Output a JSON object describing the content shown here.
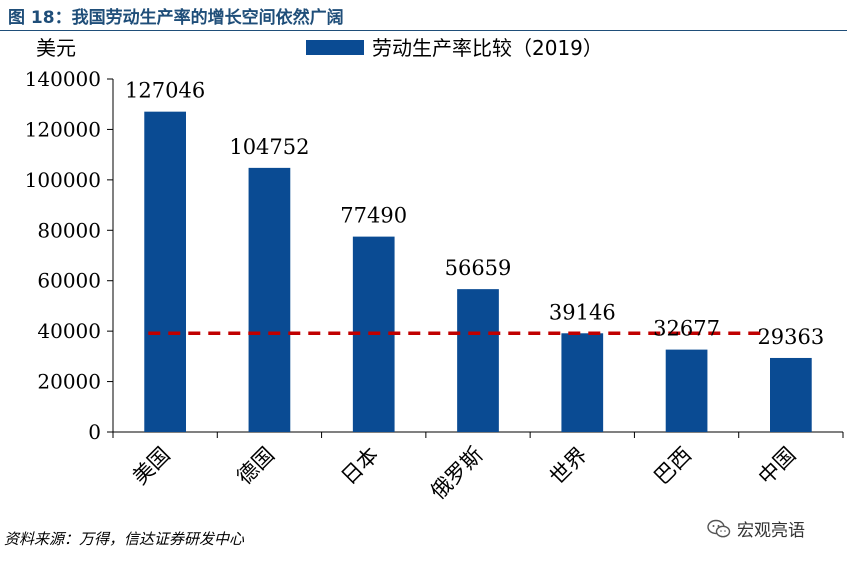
{
  "figure_title": "图 18：我国劳动生产率的增长空间依然广阔",
  "source_note": "资料来源：万得，信达证券研发中心",
  "brand": {
    "name": "宏观亮语",
    "icon": "wechat-icon"
  },
  "chart_data": {
    "type": "bar",
    "unit_label": "美元",
    "categories": [
      "美国",
      "德国",
      "日本",
      "俄罗斯",
      "世界",
      "巴西",
      "中国"
    ],
    "series": [
      {
        "name": "劳动生产率比较（2019）",
        "values": [
          127046,
          104752,
          77490,
          56659,
          39146,
          32677,
          29363
        ],
        "color": "#0a4b93"
      }
    ],
    "data_labels": [
      "127046",
      "104752",
      "77490",
      "56659",
      "39146",
      "32677",
      "29363"
    ],
    "reference_line": {
      "value": 39146,
      "style": "dashed",
      "color": "#c00000"
    },
    "yticks": [
      "0",
      "20000",
      "40000",
      "60000",
      "80000",
      "100000",
      "120000",
      "140000"
    ],
    "ylim": [
      0,
      140000
    ],
    "grid": false,
    "legend_position": "top-center"
  }
}
